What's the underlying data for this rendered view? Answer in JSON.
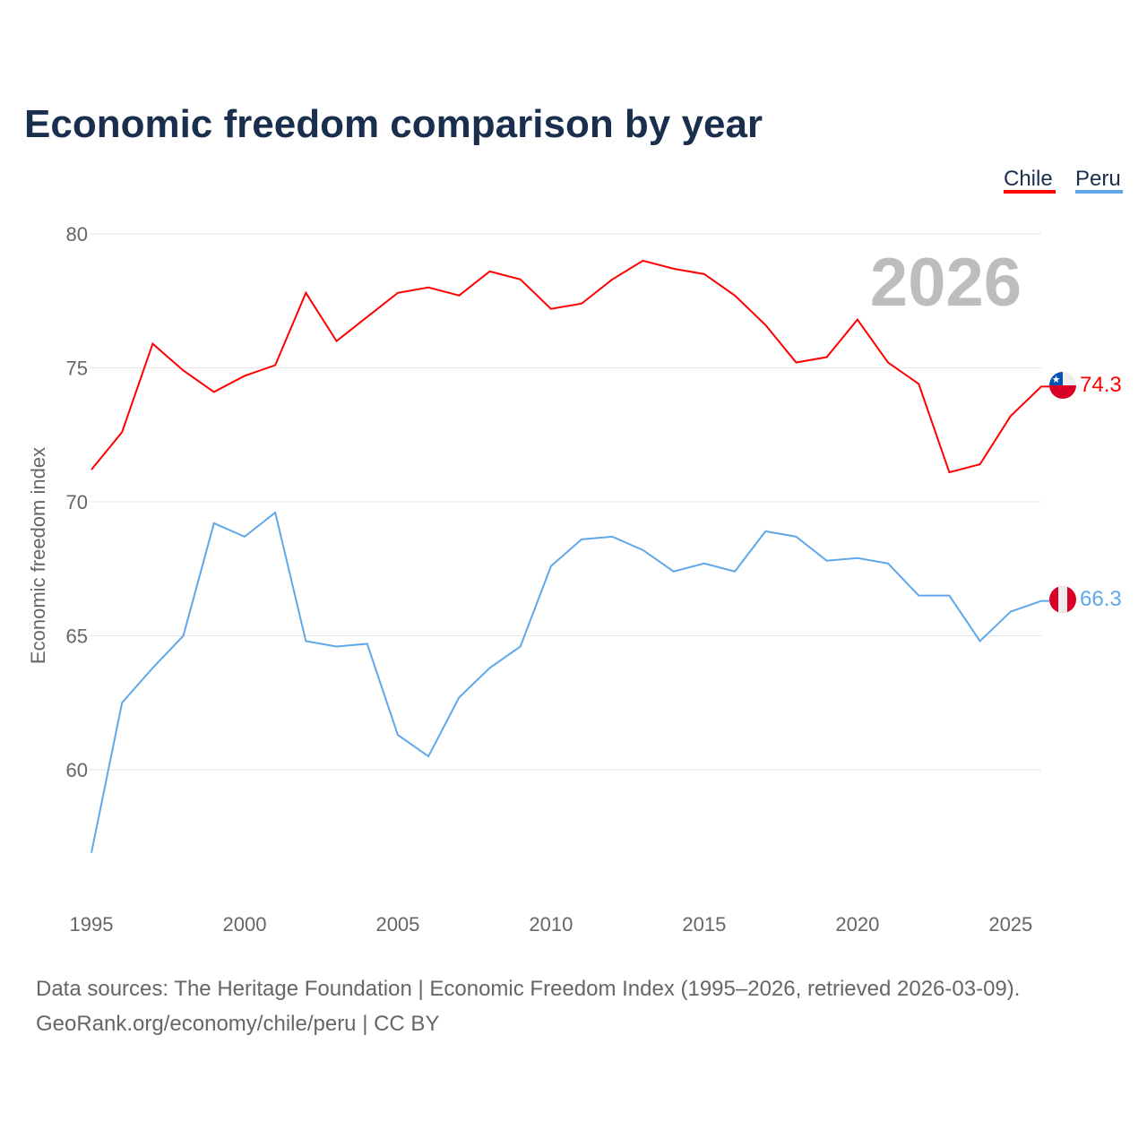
{
  "chart_data": {
    "type": "line",
    "title": "Economic freedom comparison by year",
    "ylabel": "Economic freedom index",
    "xlabel": "",
    "ylim": [
      55,
      80
    ],
    "xlim": [
      1995,
      2026
    ],
    "yticks": [
      60,
      65,
      70,
      75,
      80
    ],
    "xticks": [
      1995,
      2000,
      2005,
      2010,
      2015,
      2020,
      2025
    ],
    "grid": true,
    "legend_placement": "top-right",
    "year_label": "2026",
    "x": [
      1995,
      1996,
      1997,
      1998,
      1999,
      2000,
      2001,
      2002,
      2003,
      2004,
      2005,
      2006,
      2007,
      2008,
      2009,
      2010,
      2011,
      2012,
      2013,
      2014,
      2015,
      2016,
      2017,
      2018,
      2019,
      2020,
      2021,
      2022,
      2023,
      2024,
      2025,
      2026
    ],
    "series": [
      {
        "name": "Chile",
        "color": "#ff0000",
        "end_label": "74.3",
        "values": [
          71.2,
          72.6,
          75.9,
          74.9,
          74.1,
          74.7,
          75.1,
          77.8,
          76.0,
          76.9,
          77.8,
          78.0,
          77.7,
          78.6,
          78.3,
          77.2,
          77.4,
          78.3,
          79.0,
          78.7,
          78.5,
          77.7,
          76.6,
          75.2,
          75.4,
          76.8,
          75.2,
          74.4,
          71.1,
          71.4,
          73.2,
          74.3
        ]
      },
      {
        "name": "Peru",
        "color": "#5ea8ea",
        "end_label": "66.3",
        "values": [
          56.9,
          62.5,
          63.8,
          65.0,
          69.2,
          68.7,
          69.6,
          64.8,
          64.6,
          64.7,
          61.3,
          60.5,
          62.7,
          63.8,
          64.6,
          67.6,
          68.6,
          68.7,
          68.2,
          67.4,
          67.7,
          67.4,
          68.9,
          68.7,
          67.8,
          67.9,
          67.7,
          66.5,
          66.5,
          64.8,
          65.9,
          66.3
        ]
      }
    ]
  },
  "footer": {
    "line1": "Data sources: The Heritage Foundation | Economic Freedom Index (1995–2026, retrieved 2026-03-09).",
    "line2": "GeoRank.org/economy/chile/peru | CC BY"
  }
}
